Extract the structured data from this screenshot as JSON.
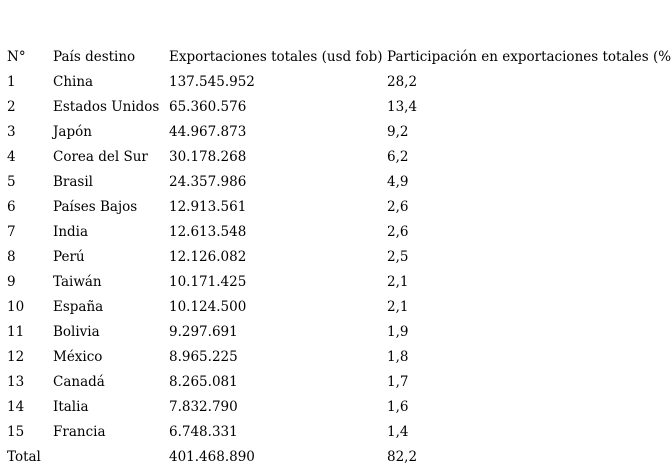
{
  "table": {
    "headers": {
      "num": "N°",
      "country": "País destino",
      "exports": "Exportaciones totales (usd fob)",
      "share": "Participación en exportaciones totales (%)"
    },
    "rows": [
      {
        "num": "1",
        "country": "China",
        "exports": "137.545.952",
        "share": "28,2"
      },
      {
        "num": "2",
        "country": "Estados Unidos",
        "exports": "65.360.576",
        "share": "13,4"
      },
      {
        "num": "3",
        "country": "Japón",
        "exports": "44.967.873",
        "share": "9,2"
      },
      {
        "num": "4",
        "country": "Corea del Sur",
        "exports": "30.178.268",
        "share": "6,2"
      },
      {
        "num": "5",
        "country": "Brasil",
        "exports": "24.357.986",
        "share": "4,9"
      },
      {
        "num": "6",
        "country": "Países Bajos",
        "exports": "12.913.561",
        "share": "2,6"
      },
      {
        "num": "7",
        "country": "India",
        "exports": "12.613.548",
        "share": "2,6"
      },
      {
        "num": "8",
        "country": "Perú",
        "exports": "12.126.082",
        "share": "2,5"
      },
      {
        "num": "9",
        "country": "Taiwán",
        "exports": "10.171.425",
        "share": "2,1"
      },
      {
        "num": "10",
        "country": "España",
        "exports": "10.124.500",
        "share": "2,1"
      },
      {
        "num": "11",
        "country": "Bolivia",
        "exports": "9.297.691",
        "share": "1,9"
      },
      {
        "num": "12",
        "country": "México",
        "exports": "8.965.225",
        "share": "1,8"
      },
      {
        "num": "13",
        "country": "Canadá",
        "exports": "8.265.081",
        "share": "1,7"
      },
      {
        "num": "14",
        "country": "Italia",
        "exports": "7.832.790",
        "share": "1,6"
      },
      {
        "num": "15",
        "country": "Francia",
        "exports": "6.748.331",
        "share": "1,4"
      }
    ],
    "total": {
      "label": "Total",
      "exports": "401.468.890",
      "share": "82,2"
    }
  }
}
